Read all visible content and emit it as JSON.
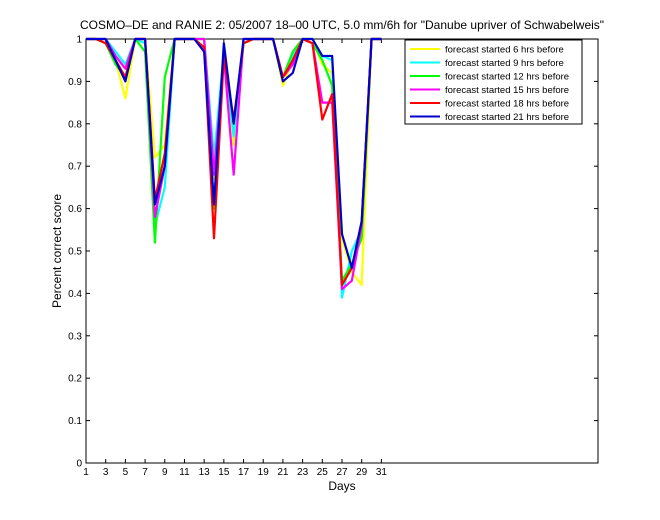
{
  "chart_data": {
    "type": "line",
    "title": "COSMO–DE and RANIE 2: 05/2007 18–00 UTC, 5.0 mm/6h for \"Danube upriver of Schwabelweis\"",
    "xlabel": "Days",
    "ylabel": "Percent correct score",
    "xlim": [
      1,
      53
    ],
    "ylim": [
      0,
      1
    ],
    "xticks": [
      "1",
      "3",
      "5",
      "7",
      "9",
      "11",
      "13",
      "15",
      "17",
      "19",
      "21",
      "23",
      "25",
      "27",
      "29",
      "31"
    ],
    "yticks": [
      "0",
      "0.1",
      "0.2",
      "0.3",
      "0.4",
      "0.5",
      "0.6",
      "0.7",
      "0.8",
      "0.9",
      "1"
    ],
    "legend_position": "top-right",
    "x": [
      1,
      2,
      3,
      4,
      5,
      6,
      7,
      8,
      9,
      10,
      11,
      12,
      13,
      14,
      15,
      16,
      17,
      18,
      19,
      20,
      21,
      22,
      23,
      24,
      25,
      26,
      27,
      28,
      29,
      30,
      31
    ],
    "series": [
      {
        "name": "forecast started 6 hrs before",
        "color": "#ffff00",
        "values": [
          1,
          1,
          0.99,
          0.95,
          0.86,
          1,
          1,
          0.72,
          0.75,
          1,
          1,
          1,
          1,
          0.67,
          0.96,
          0.75,
          0.99,
          1,
          1,
          1,
          0.89,
          0.95,
          1,
          1,
          0.94,
          0.92,
          0.53,
          0.45,
          0.42,
          1,
          1
        ]
      },
      {
        "name": "forecast started 9 hrs before",
        "color": "#00ffff",
        "values": [
          1,
          1,
          1,
          0.97,
          0.94,
          1,
          0.99,
          0.56,
          0.65,
          1,
          1,
          1,
          1,
          0.72,
          0.97,
          0.77,
          0.99,
          1,
          1,
          1,
          0.91,
          0.96,
          1,
          1,
          0.96,
          0.95,
          0.39,
          0.5,
          0.55,
          1,
          1
        ]
      },
      {
        "name": "forecast started 12 hrs before",
        "color": "#00ff00",
        "values": [
          1,
          1,
          0.99,
          0.94,
          0.91,
          1,
          0.97,
          0.52,
          0.91,
          1,
          1,
          1,
          1,
          0.6,
          0.98,
          0.8,
          0.99,
          1,
          1,
          1,
          0.91,
          0.97,
          1,
          0.99,
          0.95,
          0.89,
          0.43,
          0.47,
          0.53,
          1,
          1
        ]
      },
      {
        "name": "forecast started 15 hrs before",
        "color": "#ff00ff",
        "values": [
          1,
          1,
          1,
          0.96,
          0.93,
          1,
          1,
          0.58,
          0.7,
          1,
          1,
          1,
          1,
          0.68,
          0.96,
          0.68,
          1,
          1,
          1,
          1,
          0.91,
          0.94,
          1,
          0.99,
          0.85,
          0.85,
          0.41,
          0.43,
          0.56,
          1,
          1
        ]
      },
      {
        "name": "forecast started 18 hrs before",
        "color": "#ff0000",
        "values": [
          1,
          1,
          0.99,
          0.95,
          0.91,
          1,
          1,
          0.62,
          0.73,
          1,
          1,
          1,
          0.98,
          0.53,
          0.96,
          0.81,
          0.99,
          1,
          1,
          1,
          0.91,
          0.95,
          1,
          0.99,
          0.81,
          0.87,
          0.42,
          0.46,
          0.57,
          1,
          1
        ]
      },
      {
        "name": "forecast started 21 hrs before",
        "color": "#0000cc",
        "values": [
          1,
          1,
          1,
          0.95,
          0.9,
          1,
          1,
          0.61,
          0.7,
          1,
          1,
          1,
          0.97,
          0.61,
          0.99,
          0.8,
          1,
          1,
          1,
          1,
          0.9,
          0.92,
          1,
          1,
          0.96,
          0.96,
          0.54,
          0.46,
          0.57,
          1,
          1
        ]
      }
    ]
  }
}
